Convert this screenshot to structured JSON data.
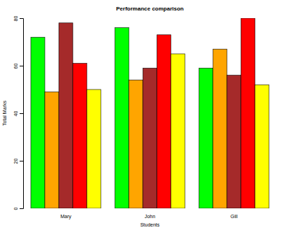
{
  "chart_data": {
    "type": "bar",
    "title": "Performance comparison",
    "x_label": "Students",
    "y_label": "Total Marks",
    "categories": [
      "Mary",
      "John",
      "Gill"
    ],
    "series": [
      {
        "color": "#00ff00",
        "values": [
          72,
          76,
          59
        ]
      },
      {
        "color": "#ffa500",
        "values": [
          49,
          54,
          67
        ]
      },
      {
        "color": "#a52a2a",
        "values": [
          78,
          59,
          56
        ]
      },
      {
        "color": "#ff0000",
        "values": [
          61,
          73,
          80
        ]
      },
      {
        "color": "#ffff00",
        "values": [
          50,
          65,
          52
        ]
      }
    ],
    "ylim": [
      0,
      80
    ],
    "yticks": [
      0,
      20,
      40,
      60,
      80
    ]
  }
}
